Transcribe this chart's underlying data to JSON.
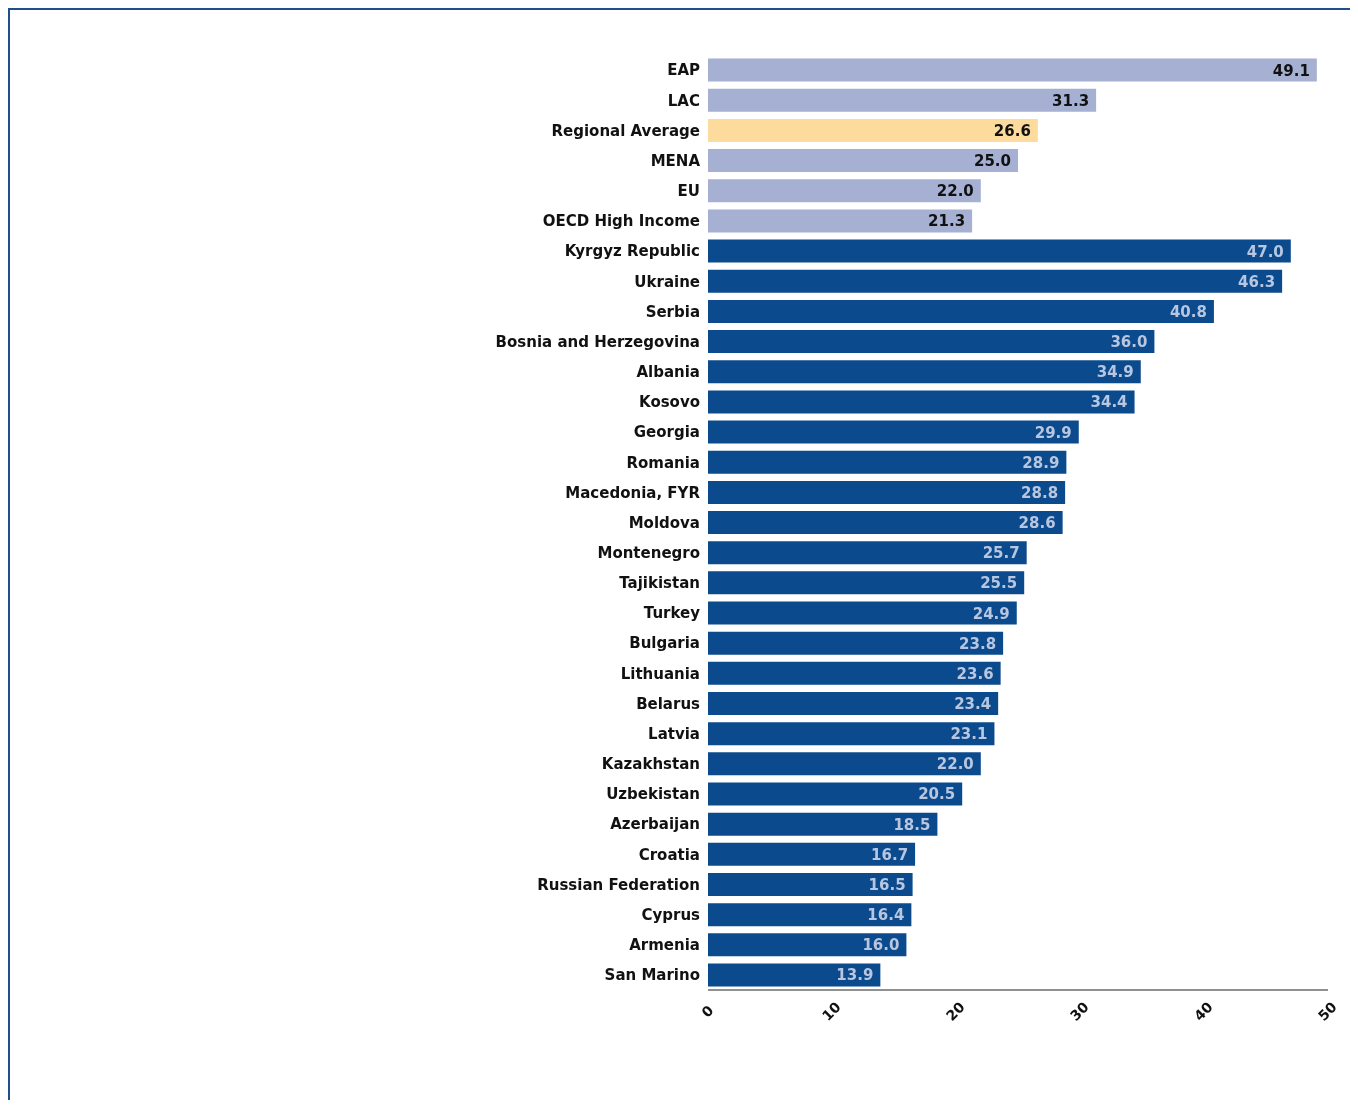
{
  "chart_data": {
    "type": "bar",
    "orientation": "horizontal",
    "categories": [
      "EAP",
      "LAC",
      "Regional Average",
      "MENA",
      "EU",
      "OECD High Income",
      "Kyrgyz Republic",
      "Ukraine",
      "Serbia",
      "Bosnia and Herzegovina",
      "Albania",
      "Kosovo",
      "Georgia",
      "Romania",
      "Macedonia, FYR",
      "Moldova",
      "Montenegro",
      "Tajikistan",
      "Turkey",
      "Bulgaria",
      "Lithuania",
      "Belarus",
      "Latvia",
      "Kazakhstan",
      "Uzbekistan",
      "Azerbaijan",
      "Croatia",
      "Russian Federation",
      "Cyprus",
      "Armenia",
      "San Marino"
    ],
    "values": [
      49.1,
      31.3,
      26.6,
      25.0,
      22.0,
      21.3,
      47.0,
      46.3,
      40.8,
      36.0,
      34.9,
      34.4,
      29.9,
      28.9,
      28.8,
      28.6,
      25.7,
      25.5,
      24.9,
      23.8,
      23.6,
      23.4,
      23.1,
      22.0,
      20.5,
      18.5,
      16.7,
      16.5,
      16.4,
      16.0,
      13.9
    ],
    "value_labels": [
      "49.1",
      "31.3",
      "26.6",
      "25.0",
      "22.0",
      "21.3",
      "47.0",
      "46.3",
      "40.8",
      "36.0",
      "34.9",
      "34.4",
      "29.9",
      "28.9",
      "28.8",
      "28.6",
      "25.7",
      "25.5",
      "24.9",
      "23.8",
      "23.6",
      "23.4",
      "23.1",
      "22.0",
      "20.5",
      "18.5",
      "16.7",
      "16.5",
      "16.4",
      "16.0",
      "13.9"
    ],
    "colors": [
      "#a5b0d2",
      "#a5b0d2",
      "#fddb9d",
      "#a5b0d2",
      "#a5b0d2",
      "#a5b0d2",
      "#0b4a8d",
      "#0b4a8d",
      "#0b4a8d",
      "#0b4a8d",
      "#0b4a8d",
      "#0b4a8d",
      "#0b4a8d",
      "#0b4a8d",
      "#0b4a8d",
      "#0b4a8d",
      "#0b4a8d",
      "#0b4a8d",
      "#0b4a8d",
      "#0b4a8d",
      "#0b4a8d",
      "#0b4a8d",
      "#0b4a8d",
      "#0b4a8d",
      "#0b4a8d",
      "#0b4a8d",
      "#0b4a8d",
      "#0b4a8d",
      "#0b4a8d",
      "#0b4a8d",
      "#0b4a8d"
    ],
    "xlim": [
      0,
      50
    ],
    "xticks": [
      0,
      10,
      20,
      30,
      40,
      50
    ],
    "grid": false
  }
}
